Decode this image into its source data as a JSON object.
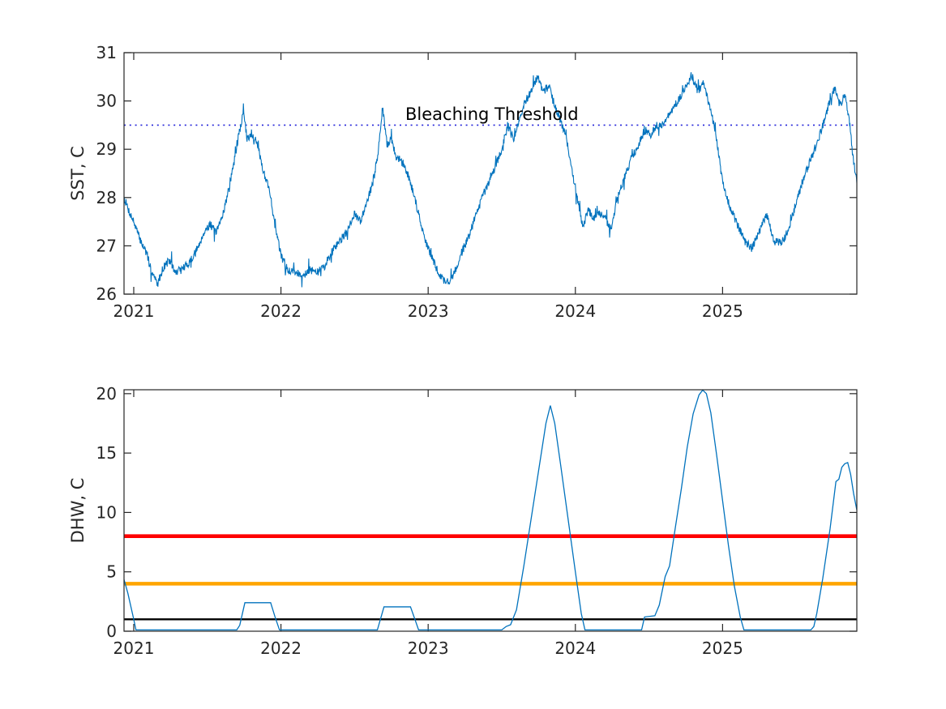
{
  "figure": {
    "background": "#ffffff"
  },
  "chart_data": [
    {
      "type": "line",
      "title": "",
      "xlabel": "",
      "ylabel": "SST, C",
      "xlim": [
        2020.934,
        2025.912
      ],
      "ylim": [
        26,
        31
      ],
      "xticks": [
        2021,
        2022,
        2023,
        2024,
        2025
      ],
      "xtick_labels": [
        "2021",
        "2022",
        "2023",
        "2024",
        "2025"
      ],
      "yticks": [
        26,
        27,
        28,
        29,
        30,
        31
      ],
      "ytick_labels": [
        "26",
        "27",
        "28",
        "29",
        "30",
        "31"
      ],
      "grid": false,
      "legend": null,
      "line_color": "#0072BD",
      "line_width": 1.1,
      "noise_amplitude": 0.085,
      "threshold_line": {
        "value": 29.5,
        "color": "#2323d9",
        "style": "dotted",
        "label": "Bleaching Threshold"
      },
      "series": [
        {
          "name": "SST",
          "points": [
            [
              2020.934,
              28.0
            ],
            [
              2020.97,
              27.7
            ],
            [
              2021.0,
              27.5
            ],
            [
              2021.04,
              27.15
            ],
            [
              2021.08,
              26.9
            ],
            [
              2021.12,
              26.5
            ],
            [
              2021.16,
              26.2
            ],
            [
              2021.2,
              26.55
            ],
            [
              2021.24,
              26.7
            ],
            [
              2021.28,
              26.45
            ],
            [
              2021.32,
              26.5
            ],
            [
              2021.36,
              26.6
            ],
            [
              2021.4,
              26.75
            ],
            [
              2021.44,
              27.0
            ],
            [
              2021.48,
              27.3
            ],
            [
              2021.52,
              27.45
            ],
            [
              2021.56,
              27.25
            ],
            [
              2021.6,
              27.6
            ],
            [
              2021.64,
              28.1
            ],
            [
              2021.68,
              28.7
            ],
            [
              2021.72,
              29.4
            ],
            [
              2021.745,
              29.78
            ],
            [
              2021.77,
              29.2
            ],
            [
              2021.8,
              29.35
            ],
            [
              2021.84,
              29.1
            ],
            [
              2021.88,
              28.55
            ],
            [
              2021.92,
              28.2
            ],
            [
              2021.96,
              27.4
            ],
            [
              2022.0,
              26.8
            ],
            [
              2022.05,
              26.5
            ],
            [
              2022.1,
              26.45
            ],
            [
              2022.15,
              26.4
            ],
            [
              2022.2,
              26.5
            ],
            [
              2022.25,
              26.45
            ],
            [
              2022.3,
              26.6
            ],
            [
              2022.35,
              26.9
            ],
            [
              2022.4,
              27.1
            ],
            [
              2022.45,
              27.3
            ],
            [
              2022.5,
              27.65
            ],
            [
              2022.54,
              27.5
            ],
            [
              2022.58,
              27.9
            ],
            [
              2022.62,
              28.25
            ],
            [
              2022.66,
              28.9
            ],
            [
              2022.69,
              29.87
            ],
            [
              2022.72,
              29.1
            ],
            [
              2022.75,
              29.2
            ],
            [
              2022.78,
              28.85
            ],
            [
              2022.82,
              28.75
            ],
            [
              2022.86,
              28.5
            ],
            [
              2022.9,
              28.1
            ],
            [
              2022.94,
              27.6
            ],
            [
              2022.98,
              27.1
            ],
            [
              2023.02,
              26.8
            ],
            [
              2023.06,
              26.5
            ],
            [
              2023.1,
              26.3
            ],
            [
              2023.14,
              26.25
            ],
            [
              2023.18,
              26.45
            ],
            [
              2023.22,
              26.8
            ],
            [
              2023.26,
              27.1
            ],
            [
              2023.3,
              27.4
            ],
            [
              2023.35,
              27.9
            ],
            [
              2023.4,
              28.2
            ],
            [
              2023.45,
              28.6
            ],
            [
              2023.5,
              29.0
            ],
            [
              2023.54,
              29.5
            ],
            [
              2023.58,
              29.2
            ],
            [
              2023.62,
              29.6
            ],
            [
              2023.66,
              30.0
            ],
            [
              2023.7,
              30.2
            ],
            [
              2023.74,
              30.5
            ],
            [
              2023.78,
              30.2
            ],
            [
              2023.82,
              30.3
            ],
            [
              2023.86,
              29.9
            ],
            [
              2023.9,
              29.6
            ],
            [
              2023.94,
              29.2
            ],
            [
              2023.98,
              28.5
            ],
            [
              2024.02,
              27.9
            ],
            [
              2024.05,
              27.4
            ],
            [
              2024.09,
              27.75
            ],
            [
              2024.12,
              27.55
            ],
            [
              2024.16,
              27.65
            ],
            [
              2024.2,
              27.6
            ],
            [
              2024.24,
              27.35
            ],
            [
              2024.28,
              27.9
            ],
            [
              2024.33,
              28.4
            ],
            [
              2024.38,
              28.8
            ],
            [
              2024.43,
              29.1
            ],
            [
              2024.47,
              29.4
            ],
            [
              2024.51,
              29.3
            ],
            [
              2024.55,
              29.5
            ],
            [
              2024.6,
              29.5
            ],
            [
              2024.65,
              29.8
            ],
            [
              2024.7,
              30.0
            ],
            [
              2024.75,
              30.3
            ],
            [
              2024.79,
              30.55
            ],
            [
              2024.83,
              30.2
            ],
            [
              2024.87,
              30.35
            ],
            [
              2024.91,
              29.9
            ],
            [
              2024.95,
              29.4
            ],
            [
              2025.0,
              28.3
            ],
            [
              2025.05,
              27.8
            ],
            [
              2025.1,
              27.45
            ],
            [
              2025.15,
              27.1
            ],
            [
              2025.2,
              26.95
            ],
            [
              2025.25,
              27.3
            ],
            [
              2025.3,
              27.65
            ],
            [
              2025.35,
              27.1
            ],
            [
              2025.4,
              27.05
            ],
            [
              2025.45,
              27.35
            ],
            [
              2025.5,
              27.9
            ],
            [
              2025.55,
              28.4
            ],
            [
              2025.6,
              28.8
            ],
            [
              2025.65,
              29.2
            ],
            [
              2025.68,
              29.5
            ],
            [
              2025.72,
              29.9
            ],
            [
              2025.76,
              30.25
            ],
            [
              2025.8,
              29.9
            ],
            [
              2025.83,
              30.15
            ],
            [
              2025.86,
              29.6
            ],
            [
              2025.88,
              29.0
            ],
            [
              2025.912,
              28.3
            ]
          ]
        }
      ]
    },
    {
      "type": "line",
      "title": "",
      "xlabel": "",
      "ylabel": "DHW, C",
      "xlim": [
        2020.934,
        2025.912
      ],
      "ylim": [
        0,
        20.33
      ],
      "xticks": [
        2021,
        2022,
        2023,
        2024,
        2025
      ],
      "xtick_labels": [
        "2021",
        "2022",
        "2023",
        "2024",
        "2025"
      ],
      "yticks": [
        0,
        5,
        10,
        15,
        20
      ],
      "ytick_labels": [
        "0",
        "5",
        "10",
        "15",
        "20"
      ],
      "grid": false,
      "legend": null,
      "line_color": "#0072BD",
      "line_width": 1.3,
      "noise_amplitude": 0,
      "reference_lines": [
        {
          "name": "dhw-alert-line",
          "value": 8,
          "color": "#ff0000",
          "width": 4.6
        },
        {
          "name": "dhw-warning-line",
          "value": 4,
          "color": "#ffa500",
          "width": 4.6
        },
        {
          "name": "dhw-watch-line",
          "value": 1,
          "color": "#000000",
          "width": 2.4
        }
      ],
      "series": [
        {
          "name": "DHW",
          "points": [
            [
              2020.934,
              4.35
            ],
            [
              2020.96,
              3.2
            ],
            [
              2021.0,
              1.0
            ],
            [
              2021.015,
              0
            ],
            [
              2021.7,
              0
            ],
            [
              2021.72,
              0.5
            ],
            [
              2021.755,
              2.4
            ],
            [
              2021.93,
              2.4
            ],
            [
              2021.96,
              1.2
            ],
            [
              2021.99,
              0
            ],
            [
              2022.655,
              0
            ],
            [
              2022.7,
              2.05
            ],
            [
              2022.88,
              2.05
            ],
            [
              2022.91,
              1.0
            ],
            [
              2022.935,
              0
            ],
            [
              2023.5,
              0
            ],
            [
              2023.53,
              0.4
            ],
            [
              2023.56,
              0.55
            ],
            [
              2023.6,
              1.8
            ],
            [
              2023.65,
              5.5
            ],
            [
              2023.7,
              9.5
            ],
            [
              2023.75,
              13.5
            ],
            [
              2023.8,
              17.5
            ],
            [
              2023.83,
              19.0
            ],
            [
              2023.86,
              17.5
            ],
            [
              2023.9,
              14.0
            ],
            [
              2023.95,
              9.5
            ],
            [
              2024.0,
              5.0
            ],
            [
              2024.04,
              1.5
            ],
            [
              2024.065,
              0
            ],
            [
              2024.45,
              0
            ],
            [
              2024.47,
              1.2
            ],
            [
              2024.54,
              1.3
            ],
            [
              2024.57,
              2.2
            ],
            [
              2024.61,
              4.6
            ],
            [
              2024.64,
              5.5
            ],
            [
              2024.68,
              8.8
            ],
            [
              2024.72,
              12.0
            ],
            [
              2024.76,
              15.5
            ],
            [
              2024.8,
              18.3
            ],
            [
              2024.84,
              19.9
            ],
            [
              2024.865,
              20.3
            ],
            [
              2024.89,
              20.0
            ],
            [
              2024.92,
              18.4
            ],
            [
              2024.96,
              14.8
            ],
            [
              2025.0,
              11.0
            ],
            [
              2025.04,
              7.2
            ],
            [
              2025.08,
              3.8
            ],
            [
              2025.12,
              1.2
            ],
            [
              2025.145,
              0
            ],
            [
              2025.6,
              0
            ],
            [
              2025.62,
              0.4
            ],
            [
              2025.64,
              1.5
            ],
            [
              2025.68,
              4.4
            ],
            [
              2025.73,
              8.6
            ],
            [
              2025.77,
              12.6
            ],
            [
              2025.79,
              12.8
            ],
            [
              2025.81,
              13.8
            ],
            [
              2025.83,
              14.1
            ],
            [
              2025.85,
              14.2
            ],
            [
              2025.87,
              13.2
            ],
            [
              2025.89,
              11.6
            ],
            [
              2025.912,
              10.2
            ]
          ]
        }
      ]
    }
  ]
}
